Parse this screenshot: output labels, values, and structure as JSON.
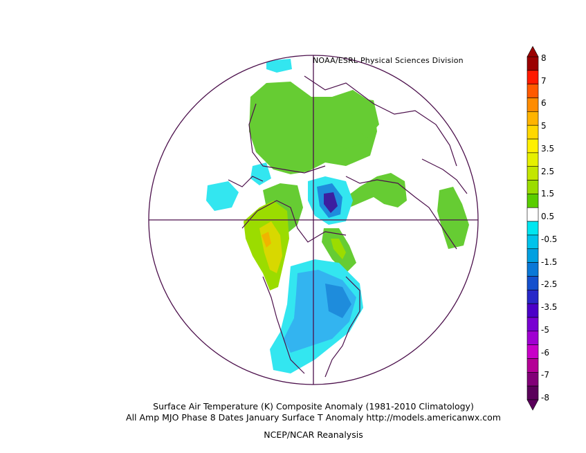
{
  "header": {
    "credit": "NOAA/ESRL Physical Sciences Division"
  },
  "captions": {
    "line1": "Surface Air Temperature (K) Composite Anomaly (1981-2010 Climatology)",
    "line2": "All Amp MJO Phase 8 Dates January Surface T Anomaly http://models.americanwx.com",
    "line3": "NCEP/NCAR Reanalysis"
  },
  "legend": {
    "labels": [
      "8",
      "7",
      "6",
      "5",
      "3.5",
      "2.5",
      "1.5",
      "0.5",
      "-0.5",
      "-1.5",
      "-2.5",
      "-3.5",
      "-5",
      "-6",
      "-7",
      "-8"
    ],
    "colors": [
      "#9b0000",
      "#ff1a00",
      "#ff5a00",
      "#ff8c00",
      "#ffb400",
      "#ffd800",
      "#fff000",
      "#e6f000",
      "#c3e600",
      "#9bdc00",
      "#5acd00",
      "#ffffff",
      "#00e6f0",
      "#00c3eb",
      "#00a0e1",
      "#0a78d7",
      "#1450cd",
      "#2828c8",
      "#4b00c8",
      "#7800d2",
      "#a000d2",
      "#c800c8",
      "#b40096",
      "#820078",
      "#5a005a"
    ]
  },
  "colors": {
    "coast": "#4b0f4b",
    "green": "#66cc33",
    "yellow": "#d8d800",
    "orange": "#f0b400",
    "cyan": "#33e6f0",
    "lightblue": "#33b4f0",
    "blue": "#1e8cdc",
    "purple": "#3c1ea0"
  },
  "map_type": "north-polar-stereographic",
  "variable": "surface-air-temperature-anomaly"
}
